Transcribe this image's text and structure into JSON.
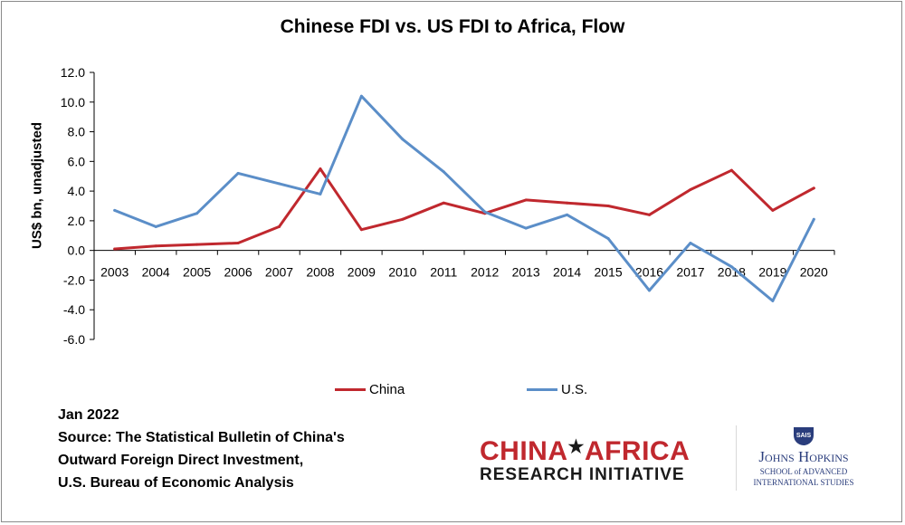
{
  "chart_data": {
    "type": "line",
    "title": "Chinese FDI vs. US FDI to Africa, Flow",
    "xlabel": "",
    "ylabel": "US$ bn, unadjusted",
    "categories": [
      "2003",
      "2004",
      "2005",
      "2006",
      "2007",
      "2008",
      "2009",
      "2010",
      "2011",
      "2012",
      "2013",
      "2014",
      "2015",
      "2016",
      "2017",
      "2018",
      "2019",
      "2020"
    ],
    "series": [
      {
        "name": "China",
        "color": "#c0282e",
        "values": [
          0.1,
          0.3,
          0.4,
          0.5,
          1.6,
          5.5,
          1.4,
          2.1,
          3.2,
          2.5,
          3.4,
          3.2,
          3.0,
          2.4,
          4.1,
          5.4,
          2.7,
          4.2
        ]
      },
      {
        "name": "U.S.",
        "color": "#5b8ec8",
        "values": [
          2.7,
          1.6,
          2.5,
          5.2,
          4.5,
          3.8,
          10.4,
          7.5,
          5.3,
          2.6,
          1.5,
          2.4,
          0.8,
          -2.7,
          0.5,
          -1.1,
          -3.4,
          2.1
        ]
      }
    ],
    "ylim": [
      -6,
      12
    ],
    "ytick_labels": [
      "12.0",
      "10.0",
      "8.0",
      "6.0",
      "4.0",
      "2.0",
      "0.0",
      "-2.0",
      "-4.0",
      "-6.0"
    ],
    "grid": false,
    "legend_position": "bottom"
  },
  "notes": {
    "date": "Jan 2022",
    "source_line1": "Source: The Statistical Bulletin of China's",
    "source_line2": "Outward Foreign Direct Investment,",
    "source_line3": "U.S. Bureau of Economic Analysis"
  },
  "logos": {
    "car_top_left": "CHINA",
    "car_top_right": "AFRICA",
    "car_bottom": "RESEARCH INITIATIVE",
    "jhu_shield": "SAIS",
    "jhu_name": "Johns Hopkins",
    "jhu_school_line1": "SCHOOL of ADVANCED",
    "jhu_school_line2": "INTERNATIONAL STUDIES"
  }
}
